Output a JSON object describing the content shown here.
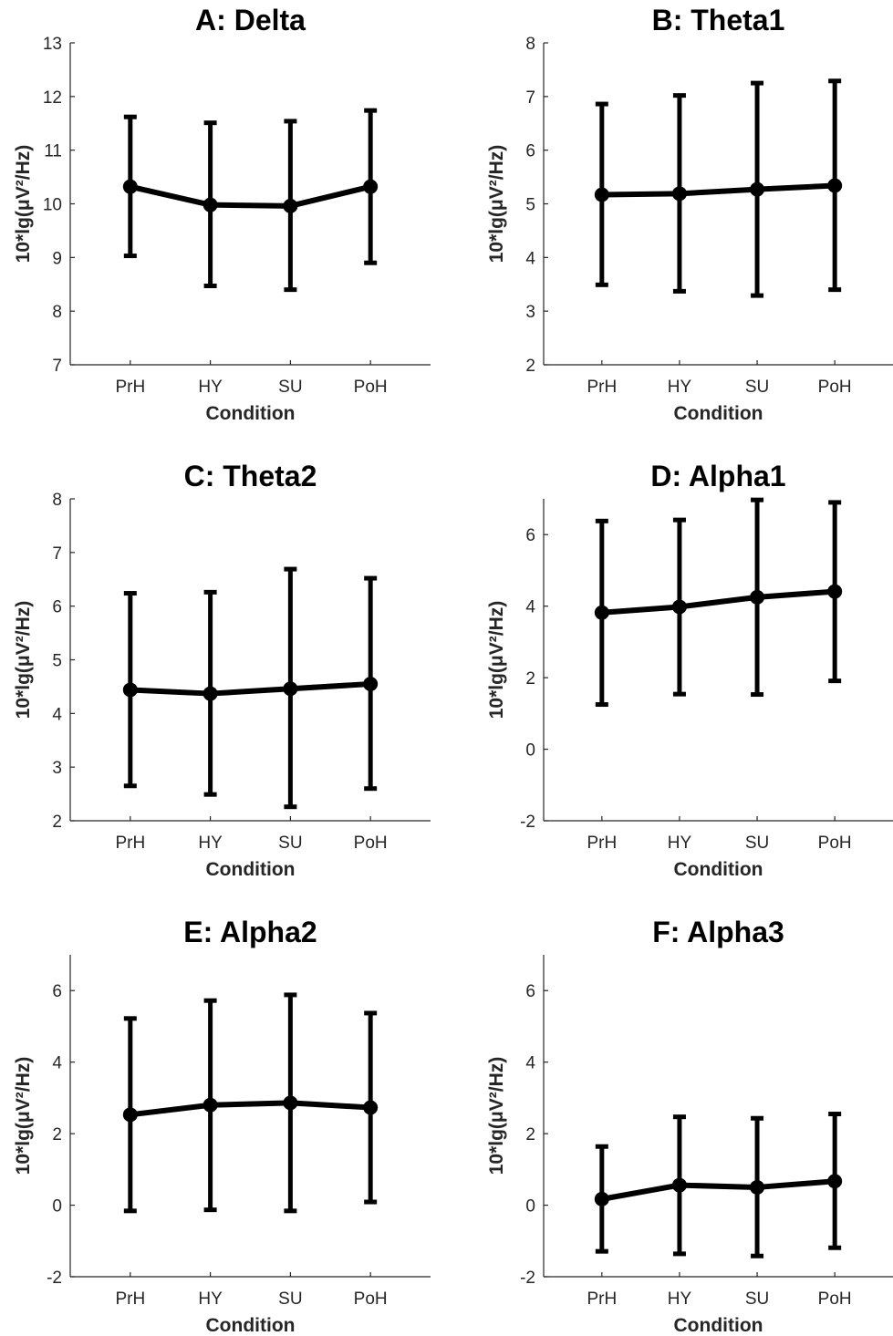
{
  "chart_data": [
    {
      "panel": "A",
      "type": "line",
      "title": "A: Delta",
      "xlabel": "Condition",
      "ylabel": "10*lg(μV²/Hz)",
      "ylim": [
        7,
        13
      ],
      "yticks": [
        "7",
        "8",
        "9",
        "10",
        "11",
        "12",
        "13"
      ],
      "categories": [
        "PrH",
        "HY",
        "SU",
        "PoH"
      ],
      "values": [
        10.32,
        9.98,
        9.96,
        10.32
      ],
      "error_low": [
        9.03,
        8.47,
        8.4,
        8.9
      ],
      "error_high": [
        11.62,
        11.51,
        11.54,
        11.74
      ]
    },
    {
      "panel": "B",
      "type": "line",
      "title": "B: Theta1",
      "xlabel": "Condition",
      "ylabel": "10*lg(μV²/Hz)",
      "ylim": [
        2,
        8
      ],
      "yticks": [
        "2",
        "3",
        "4",
        "5",
        "6",
        "7",
        "8"
      ],
      "categories": [
        "PrH",
        "HY",
        "SU",
        "PoH"
      ],
      "values": [
        5.17,
        5.19,
        5.27,
        5.34
      ],
      "error_low": [
        3.49,
        3.37,
        3.29,
        3.4
      ],
      "error_high": [
        6.86,
        7.02,
        7.25,
        7.29
      ]
    },
    {
      "panel": "C",
      "type": "line",
      "title": "C: Theta2",
      "xlabel": "Condition",
      "ylabel": "10*lg(μV²/Hz)",
      "ylim": [
        2,
        8
      ],
      "yticks": [
        "2",
        "3",
        "4",
        "5",
        "6",
        "7",
        "8"
      ],
      "categories": [
        "PrH",
        "HY",
        "SU",
        "PoH"
      ],
      "values": [
        4.44,
        4.37,
        4.46,
        4.55
      ],
      "error_low": [
        2.65,
        2.49,
        2.26,
        2.6
      ],
      "error_high": [
        6.24,
        6.26,
        6.69,
        6.52
      ]
    },
    {
      "panel": "D",
      "type": "line",
      "title": "D: Alpha1",
      "xlabel": "Condition",
      "ylabel": "10*lg(μV²/Hz)",
      "ylim": [
        -2,
        7
      ],
      "yticks": [
        "-2",
        "0",
        "2",
        "4",
        "6"
      ],
      "categories": [
        "PrH",
        "HY",
        "SU",
        "PoH"
      ],
      "values": [
        3.82,
        3.98,
        4.25,
        4.41
      ],
      "error_low": [
        1.25,
        1.54,
        1.53,
        1.91
      ],
      "error_high": [
        6.38,
        6.41,
        6.97,
        6.9
      ]
    },
    {
      "panel": "E",
      "type": "line",
      "title": "E: Alpha2",
      "xlabel": "Condition",
      "ylabel": "10*lg(μV²/Hz)",
      "ylim": [
        -2,
        7
      ],
      "yticks": [
        "-2",
        "0",
        "2",
        "4",
        "6"
      ],
      "categories": [
        "PrH",
        "HY",
        "SU",
        "PoH"
      ],
      "values": [
        2.53,
        2.8,
        2.86,
        2.73
      ],
      "error_low": [
        -0.16,
        -0.13,
        -0.16,
        0.09
      ],
      "error_high": [
        5.22,
        5.72,
        5.88,
        5.37
      ]
    },
    {
      "panel": "F",
      "type": "line",
      "title": "F: Alpha3",
      "xlabel": "Condition",
      "ylabel": "10*lg(μV²/Hz)",
      "ylim": [
        -2,
        7
      ],
      "yticks": [
        "-2",
        "0",
        "2",
        "4",
        "6"
      ],
      "categories": [
        "PrH",
        "HY",
        "SU",
        "PoH"
      ],
      "values": [
        0.17,
        0.56,
        0.5,
        0.67
      ],
      "error_low": [
        -1.29,
        -1.36,
        -1.42,
        -1.19
      ],
      "error_high": [
        1.64,
        2.47,
        2.43,
        2.55
      ]
    }
  ]
}
